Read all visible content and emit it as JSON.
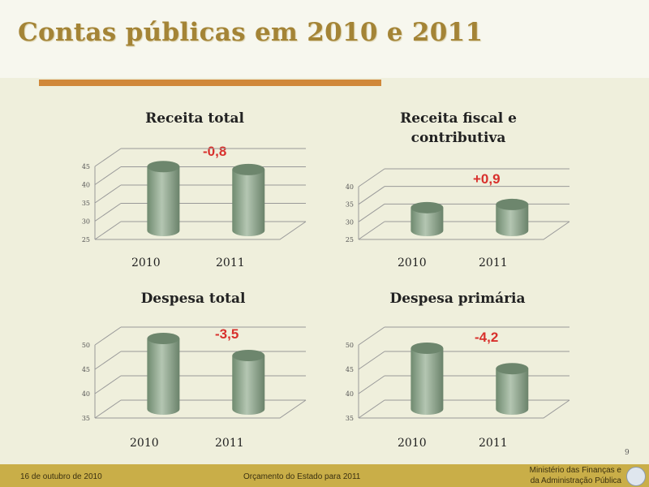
{
  "slide": {
    "title": "Contas públicas em 2010 e 2011",
    "page_number": "9"
  },
  "footer": {
    "date": "16 de outubro de 2010",
    "center": "Orçamento do Estado para 2011",
    "ministry_line1": "Ministério das Finanças e",
    "ministry_line2": "da Administração Pública"
  },
  "colors": {
    "bar": "#8fa68f",
    "title": "#a48436",
    "delta": "#d8302c",
    "footer": "#c9ae48"
  },
  "chart_data": [
    {
      "type": "bar",
      "title": "Receita total",
      "categories": [
        "2010",
        "2011"
      ],
      "values": [
        42.5,
        41.7
      ],
      "ylim": [
        25,
        45
      ],
      "yticks": [
        "25",
        "30",
        "35",
        "40",
        "45"
      ],
      "annotation": "-0,8",
      "grid": true
    },
    {
      "type": "bar",
      "title": "Receita fiscal e contributiva",
      "categories": [
        "2010",
        "2011"
      ],
      "values": [
        31.5,
        32.4
      ],
      "ylim": [
        25,
        40
      ],
      "yticks": [
        "25",
        "30",
        "35",
        "40"
      ],
      "annotation": "+0,9",
      "grid": true
    },
    {
      "type": "bar",
      "title": "Despesa total",
      "categories": [
        "2010",
        "2011"
      ],
      "values": [
        49.5,
        46.0
      ],
      "ylim": [
        35,
        50
      ],
      "yticks": [
        "35",
        "40",
        "45",
        "50"
      ],
      "annotation": "-3,5",
      "grid": true
    },
    {
      "type": "bar",
      "title": "Despesa primária",
      "categories": [
        "2010",
        "2011"
      ],
      "values": [
        47.5,
        43.3
      ],
      "ylim": [
        35,
        50
      ],
      "yticks": [
        "35",
        "40",
        "45",
        "50"
      ],
      "annotation": "-4,2",
      "grid": true
    }
  ]
}
